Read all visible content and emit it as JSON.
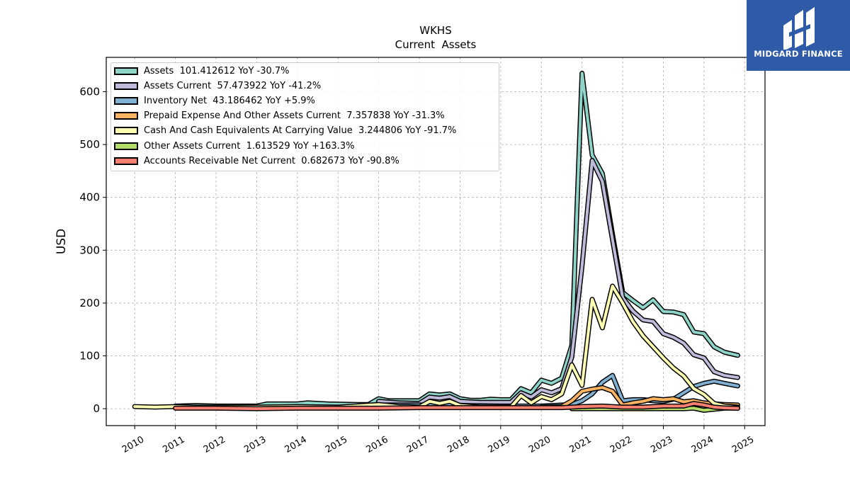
{
  "chart_data": {
    "type": "line",
    "title": "WKHS",
    "subtitle": "Current  Assets",
    "ylabel": "USD",
    "xlabel": "",
    "xlim": [
      2009.3,
      2025.5
    ],
    "ylim": [
      -32,
      665
    ],
    "x_ticks": [
      "2010",
      "2011",
      "2012",
      "2013",
      "2014",
      "2015",
      "2016",
      "2017",
      "2018",
      "2019",
      "2020",
      "2021",
      "2022",
      "2023",
      "2024",
      "2025"
    ],
    "y_ticks": [
      "0",
      "100",
      "200",
      "300",
      "400",
      "500",
      "600"
    ],
    "grid": true,
    "legend_position": "top-left",
    "series": [
      {
        "name": "Assets  101.412612 YoY -30.7%",
        "color": "#8dd3c7",
        "points": [
          [
            2011.0,
            5
          ],
          [
            2011.5,
            6
          ],
          [
            2012.0,
            5
          ],
          [
            2012.5,
            5
          ],
          [
            2013.0,
            5
          ],
          [
            2013.25,
            9
          ],
          [
            2014.0,
            9
          ],
          [
            2014.25,
            11
          ],
          [
            2014.75,
            9
          ],
          [
            2015.5,
            8
          ],
          [
            2015.75,
            8
          ],
          [
            2016.0,
            19
          ],
          [
            2016.25,
            15
          ],
          [
            2016.5,
            15
          ],
          [
            2016.75,
            15
          ],
          [
            2017.0,
            15
          ],
          [
            2017.25,
            28
          ],
          [
            2017.5,
            26
          ],
          [
            2017.75,
            28
          ],
          [
            2018.0,
            19
          ],
          [
            2018.25,
            16
          ],
          [
            2018.5,
            16
          ],
          [
            2018.75,
            18
          ],
          [
            2019.0,
            17
          ],
          [
            2019.25,
            17
          ],
          [
            2019.5,
            38
          ],
          [
            2019.75,
            30
          ],
          [
            2020.0,
            54
          ],
          [
            2020.25,
            48
          ],
          [
            2020.5,
            58
          ],
          [
            2020.75,
            120
          ],
          [
            2021.0,
            635
          ],
          [
            2021.25,
            480
          ],
          [
            2021.5,
            445
          ],
          [
            2021.75,
            330
          ],
          [
            2022.0,
            220
          ],
          [
            2022.25,
            205
          ],
          [
            2022.5,
            191
          ],
          [
            2022.75,
            206
          ],
          [
            2023.0,
            184
          ],
          [
            2023.25,
            183
          ],
          [
            2023.5,
            178
          ],
          [
            2023.75,
            145
          ],
          [
            2024.0,
            142
          ],
          [
            2024.25,
            117
          ],
          [
            2024.5,
            107
          ],
          [
            2024.83,
            101
          ]
        ]
      },
      {
        "name": "Assets Current  57.473922 YoY -41.2%",
        "color": "#bebada",
        "points": [
          [
            2016.0,
            14
          ],
          [
            2016.5,
            11
          ],
          [
            2017.0,
            10
          ],
          [
            2017.25,
            22
          ],
          [
            2017.5,
            20
          ],
          [
            2017.75,
            23
          ],
          [
            2018.0,
            14
          ],
          [
            2018.5,
            12
          ],
          [
            2019.0,
            12
          ],
          [
            2019.25,
            12
          ],
          [
            2019.5,
            30
          ],
          [
            2019.75,
            22
          ],
          [
            2020.0,
            36
          ],
          [
            2020.25,
            30
          ],
          [
            2020.5,
            38
          ],
          [
            2020.75,
            98
          ],
          [
            2021.0,
            270
          ],
          [
            2021.25,
            470
          ],
          [
            2021.5,
            430
          ],
          [
            2021.75,
            320
          ],
          [
            2022.0,
            210
          ],
          [
            2022.25,
            185
          ],
          [
            2022.5,
            168
          ],
          [
            2022.75,
            165
          ],
          [
            2023.0,
            142
          ],
          [
            2023.25,
            135
          ],
          [
            2023.5,
            124
          ],
          [
            2023.75,
            102
          ],
          [
            2024.0,
            96
          ],
          [
            2024.25,
            70
          ],
          [
            2024.5,
            63
          ],
          [
            2024.83,
            59
          ]
        ]
      },
      {
        "name": "Inventory Net  43.186462 YoY +5.9%",
        "color": "#80b1d3",
        "points": [
          [
            2016.0,
            7
          ],
          [
            2017.0,
            7
          ],
          [
            2018.0,
            6
          ],
          [
            2019.0,
            5
          ],
          [
            2020.0,
            5
          ],
          [
            2020.75,
            8
          ],
          [
            2021.0,
            15
          ],
          [
            2021.25,
            28
          ],
          [
            2021.5,
            50
          ],
          [
            2021.75,
            63
          ],
          [
            2022.0,
            15
          ],
          [
            2022.25,
            17
          ],
          [
            2022.5,
            17
          ],
          [
            2022.75,
            15
          ],
          [
            2023.0,
            14
          ],
          [
            2023.25,
            18
          ],
          [
            2023.5,
            30
          ],
          [
            2023.75,
            42
          ],
          [
            2024.0,
            48
          ],
          [
            2024.25,
            52
          ],
          [
            2024.5,
            48
          ],
          [
            2024.83,
            43
          ]
        ]
      },
      {
        "name": "Prepaid Expense And Other Assets Current  7.357838 YoY -31.3%",
        "color": "#fdb462",
        "points": [
          [
            2020.0,
            3
          ],
          [
            2020.5,
            4
          ],
          [
            2020.75,
            15
          ],
          [
            2021.0,
            33
          ],
          [
            2021.25,
            37
          ],
          [
            2021.5,
            40
          ],
          [
            2021.75,
            33
          ],
          [
            2022.0,
            7
          ],
          [
            2022.25,
            11
          ],
          [
            2022.5,
            14
          ],
          [
            2022.75,
            19
          ],
          [
            2023.0,
            17
          ],
          [
            2023.25,
            19
          ],
          [
            2023.5,
            13
          ],
          [
            2023.75,
            15
          ],
          [
            2024.0,
            11
          ],
          [
            2024.25,
            9
          ],
          [
            2024.5,
            8
          ],
          [
            2024.83,
            7
          ]
        ]
      },
      {
        "name": "Cash And Cash Equivalents At Carrying Value  3.244806 YoY -91.7%",
        "color": "#ffffb3",
        "points": [
          [
            2010.0,
            4
          ],
          [
            2010.5,
            3
          ],
          [
            2011.0,
            4
          ],
          [
            2011.5,
            3
          ],
          [
            2012.0,
            3
          ],
          [
            2013.0,
            3
          ],
          [
            2014.0,
            4
          ],
          [
            2015.0,
            3
          ],
          [
            2016.0,
            8
          ],
          [
            2016.25,
            6
          ],
          [
            2016.5,
            4
          ],
          [
            2016.75,
            4
          ],
          [
            2017.0,
            3
          ],
          [
            2017.25,
            14
          ],
          [
            2017.5,
            10
          ],
          [
            2017.75,
            14
          ],
          [
            2018.0,
            6
          ],
          [
            2018.5,
            3
          ],
          [
            2019.0,
            3
          ],
          [
            2019.25,
            3
          ],
          [
            2019.5,
            25
          ],
          [
            2019.75,
            11
          ],
          [
            2020.0,
            23
          ],
          [
            2020.25,
            17
          ],
          [
            2020.5,
            28
          ],
          [
            2020.75,
            83
          ],
          [
            2021.0,
            44
          ],
          [
            2021.25,
            207
          ],
          [
            2021.5,
            153
          ],
          [
            2021.75,
            232
          ],
          [
            2022.0,
            200
          ],
          [
            2022.25,
            165
          ],
          [
            2022.5,
            138
          ],
          [
            2022.75,
            117
          ],
          [
            2023.0,
            96
          ],
          [
            2023.25,
            77
          ],
          [
            2023.5,
            62
          ],
          [
            2023.75,
            38
          ],
          [
            2024.0,
            27
          ],
          [
            2024.25,
            10
          ],
          [
            2024.5,
            5
          ],
          [
            2024.83,
            3
          ]
        ]
      },
      {
        "name": "Other Assets Current  1.613529 YoY +163.3%",
        "color": "#b3de69",
        "points": [
          [
            2020.75,
            0
          ],
          [
            2021.0,
            0
          ],
          [
            2021.5,
            0
          ],
          [
            2022.0,
            0
          ],
          [
            2023.0,
            0
          ],
          [
            2023.5,
            0
          ],
          [
            2023.75,
            1
          ],
          [
            2024.0,
            -3
          ],
          [
            2024.25,
            -1
          ],
          [
            2024.5,
            1
          ],
          [
            2024.83,
            1.6
          ]
        ]
      },
      {
        "name": "Accounts Receivable Net Current  0.682673 YoY -90.8%",
        "color": "#fb8072",
        "points": [
          [
            2011.0,
            1
          ],
          [
            2012.0,
            1
          ],
          [
            2013.0,
            0
          ],
          [
            2014.0,
            1
          ],
          [
            2015.0,
            1
          ],
          [
            2016.0,
            1
          ],
          [
            2017.0,
            2
          ],
          [
            2018.0,
            2
          ],
          [
            2019.0,
            2
          ],
          [
            2020.0,
            2
          ],
          [
            2020.5,
            2
          ],
          [
            2021.0,
            4
          ],
          [
            2021.5,
            5
          ],
          [
            2022.0,
            3
          ],
          [
            2022.5,
            3
          ],
          [
            2023.0,
            5
          ],
          [
            2023.5,
            5
          ],
          [
            2023.75,
            10
          ],
          [
            2024.0,
            7
          ],
          [
            2024.25,
            3
          ],
          [
            2024.5,
            1.5
          ],
          [
            2024.83,
            0.7
          ]
        ]
      }
    ]
  },
  "logo": {
    "text": "MIDGARD FINANCE",
    "background": "#2f5aa8"
  }
}
